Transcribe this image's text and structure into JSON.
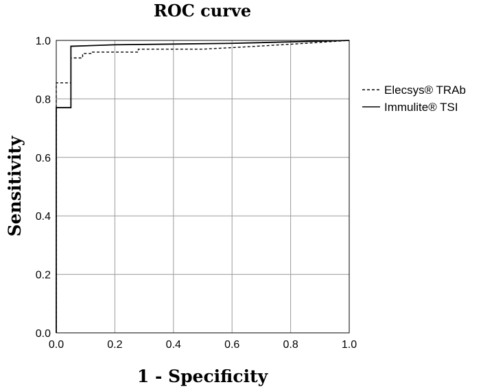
{
  "chart_data": {
    "type": "line",
    "title": "ROC curve",
    "xlabel": "1 - Specificity",
    "ylabel": "Sensitivity",
    "xlim": [
      0,
      1
    ],
    "ylim": [
      0,
      1
    ],
    "xticks": [
      "0.0",
      "0.2",
      "0.4",
      "0.6",
      "0.8",
      "1.0"
    ],
    "yticks": [
      "0.0",
      "0.2",
      "0.4",
      "0.6",
      "0.8",
      "1.0"
    ],
    "grid": true,
    "legend_position": "right",
    "series": [
      {
        "name": "Elecsys® TRAb",
        "style": "dashed",
        "color": "#000000",
        "points": [
          [
            0,
            0
          ],
          [
            0,
            0.855
          ],
          [
            0.05,
            0.855
          ],
          [
            0.05,
            0.94
          ],
          [
            0.09,
            0.94
          ],
          [
            0.09,
            0.955
          ],
          [
            0.12,
            0.955
          ],
          [
            0.12,
            0.96
          ],
          [
            0.28,
            0.96
          ],
          [
            0.28,
            0.97
          ],
          [
            0.5,
            0.97
          ],
          [
            0.65,
            0.978
          ],
          [
            0.85,
            0.99
          ],
          [
            1,
            1
          ]
        ]
      },
      {
        "name": "Immulite® TSI",
        "style": "solid",
        "color": "#000000",
        "points": [
          [
            0,
            0
          ],
          [
            0,
            0.77
          ],
          [
            0.05,
            0.77
          ],
          [
            0.05,
            0.98
          ],
          [
            0.2,
            0.985
          ],
          [
            0.6,
            0.99
          ],
          [
            1,
            1
          ]
        ]
      }
    ]
  }
}
